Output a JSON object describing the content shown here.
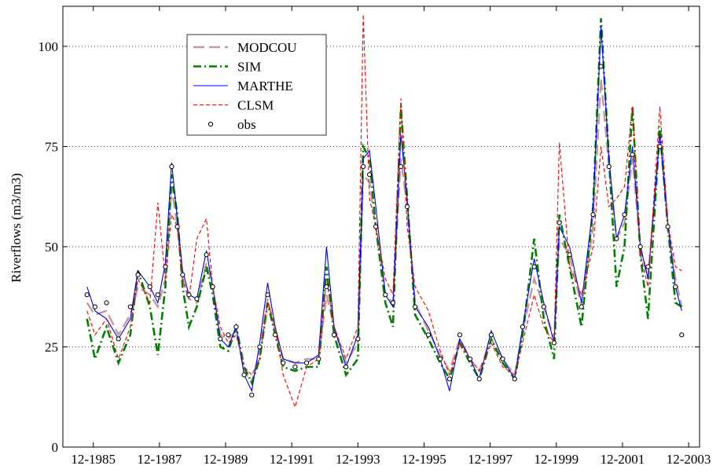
{
  "chart_data": {
    "type": "line",
    "y_label": "Riverflows (m3/m3)",
    "xlim": [
      1985.0,
      2004.25
    ],
    "ylim": [
      0,
      110
    ],
    "yticks": [
      0,
      25,
      50,
      75,
      100
    ],
    "xticks": [
      {
        "value": 1985.92,
        "label": "12-1985"
      },
      {
        "value": 1987.92,
        "label": "12-1987"
      },
      {
        "value": 1989.92,
        "label": "12-1989"
      },
      {
        "value": 1991.92,
        "label": "12-1991"
      },
      {
        "value": 1993.92,
        "label": "12-1993"
      },
      {
        "value": 1995.92,
        "label": "12-1995"
      },
      {
        "value": 1997.92,
        "label": "12-1997"
      },
      {
        "value": 1999.92,
        "label": "12-1999"
      },
      {
        "value": 2001.92,
        "label": "12-2001"
      },
      {
        "value": 2003.92,
        "label": "12-2003"
      }
    ],
    "grid": true,
    "legend": "upper-left",
    "x": [
      1985.73,
      1985.97,
      1986.32,
      1986.68,
      1987.04,
      1987.27,
      1987.63,
      1987.87,
      1988.1,
      1988.29,
      1988.46,
      1988.62,
      1988.81,
      1989.05,
      1989.34,
      1989.53,
      1989.76,
      1990.0,
      1990.24,
      1990.48,
      1990.71,
      1990.95,
      1991.19,
      1991.42,
      1991.66,
      1992.02,
      1992.37,
      1992.73,
      1992.97,
      1993.2,
      1993.56,
      1993.92,
      1994.08,
      1994.27,
      1994.46,
      1994.75,
      1994.98,
      1995.22,
      1995.41,
      1995.65,
      1996.05,
      1996.41,
      1996.69,
      1997.0,
      1997.31,
      1997.59,
      1997.95,
      1998.3,
      1998.66,
      1998.9,
      1999.25,
      1999.54,
      1999.85,
      2000.01,
      2000.32,
      2000.68,
      2001.03,
      2001.27,
      2001.51,
      2001.74,
      2001.98,
      2002.22,
      2002.46,
      2002.69,
      2003.05,
      2003.29,
      2003.52,
      2003.71
    ],
    "series": [
      {
        "name": "MODCOU",
        "color": "#c49a9a",
        "dash": "long",
        "values": [
          36,
          33,
          34,
          28,
          33,
          40,
          38,
          35,
          42,
          65,
          55,
          42,
          37,
          36,
          46,
          40,
          28,
          27,
          29,
          19,
          16,
          24,
          37,
          29,
          22,
          21,
          22,
          22,
          38,
          30,
          21,
          26,
          68,
          66,
          55,
          38,
          36,
          72,
          60,
          36,
          29,
          23,
          19,
          27,
          22,
          19,
          27,
          22,
          18,
          29,
          42,
          35,
          27,
          52,
          48,
          35,
          55,
          92,
          70,
          52,
          56,
          72,
          50,
          42,
          78,
          55,
          42,
          35
        ]
      },
      {
        "name": "SIM",
        "color": "#008000",
        "dash": "dashdot",
        "values": [
          32,
          22,
          30,
          21,
          28,
          44,
          35,
          23,
          40,
          68,
          58,
          40,
          30,
          35,
          45,
          38,
          25,
          24,
          30,
          20,
          16,
          22,
          36,
          28,
          20,
          19,
          20,
          20,
          45,
          28,
          18,
          22,
          75,
          72,
          55,
          36,
          30,
          85,
          62,
          33,
          27,
          21,
          17,
          26,
          21,
          17,
          27,
          21,
          17,
          28,
          52,
          32,
          22,
          58,
          45,
          30,
          60,
          107,
          72,
          40,
          50,
          85,
          48,
          32,
          80,
          55,
          36,
          35
        ]
      },
      {
        "name": "MARTHE",
        "color": "#0000ff",
        "dash": "solid",
        "values": [
          40,
          34,
          32,
          27,
          32,
          44,
          40,
          36,
          46,
          71,
          57,
          44,
          38,
          37,
          49,
          40,
          27,
          25,
          30,
          18,
          14,
          26,
          41,
          30,
          22,
          21,
          21,
          23,
          50,
          30,
          20,
          28,
          72,
          74,
          60,
          38,
          35,
          78,
          62,
          35,
          30,
          22,
          14,
          27,
          22,
          17,
          29,
          22,
          17,
          30,
          47,
          36,
          26,
          55,
          50,
          36,
          60,
          105,
          72,
          52,
          58,
          75,
          50,
          42,
          78,
          56,
          40,
          34
        ]
      },
      {
        "name": "CLSM",
        "color": "#ff0000",
        "dash": "short",
        "values": [
          34,
          28,
          32,
          22,
          30,
          42,
          36,
          61,
          42,
          58,
          55,
          42,
          37,
          52,
          57,
          40,
          30,
          26,
          28,
          20,
          18,
          22,
          36,
          30,
          18,
          10,
          20,
          22,
          42,
          30,
          22,
          30,
          108,
          62,
          55,
          42,
          38,
          87,
          55,
          40,
          34,
          24,
          18,
          26,
          22,
          19,
          26,
          20,
          18,
          26,
          38,
          30,
          26,
          76,
          45,
          38,
          50,
          75,
          60,
          62,
          65,
          85,
          48,
          40,
          85,
          56,
          45,
          44
        ]
      },
      {
        "name": "obs",
        "color": "#000000",
        "marker": "circle",
        "values": [
          38,
          35,
          36,
          27,
          35,
          43,
          40,
          38,
          45,
          70,
          55,
          43,
          38,
          37,
          48,
          40,
          27,
          28,
          30,
          18,
          13,
          25,
          38,
          28,
          21,
          20,
          21,
          22,
          40,
          28,
          20,
          27,
          70,
          68,
          55,
          38,
          36,
          70,
          60,
          35,
          28,
          22,
          17,
          28,
          22,
          17,
          28,
          22,
          17,
          30,
          45,
          35,
          26,
          56,
          48,
          35,
          58,
          95,
          70,
          52,
          58,
          73,
          50,
          45,
          75,
          55,
          40,
          28
        ]
      }
    ]
  }
}
